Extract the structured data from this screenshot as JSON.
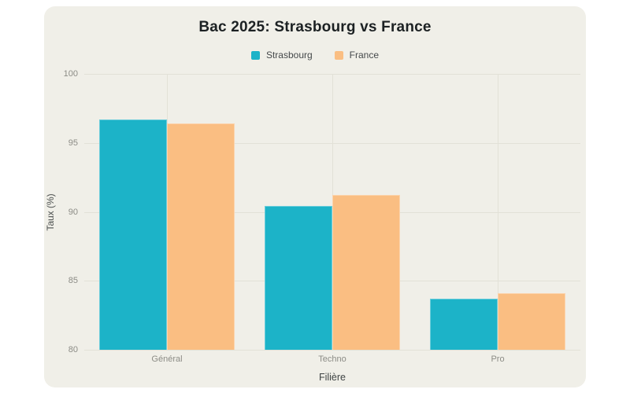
{
  "chart_data": {
    "type": "bar",
    "title": "Bac 2025: Strasbourg vs France",
    "categories": [
      "Général",
      "Techno",
      "Pro"
    ],
    "series": [
      {
        "name": "Strasbourg",
        "color": "#1cb3c8",
        "values": [
          96.7,
          90.4,
          83.7
        ]
      },
      {
        "name": "France",
        "color": "#fabe82",
        "values": [
          96.4,
          91.2,
          84.1
        ]
      }
    ],
    "xlabel": "Filière",
    "ylabel": "Taux (%)",
    "ylim": [
      80,
      100
    ],
    "yticks": [
      80,
      85,
      90,
      95,
      100
    ],
    "grid": true,
    "legend_position": "top"
  },
  "colors": {
    "page_background": "#ffffff",
    "card_background": "#f0efe8",
    "gridline": "#e2e1d7",
    "tick_text": "#8c8c86",
    "axis_title_text": "#4c504f",
    "title_text": "#1c2123",
    "legend_text": "#45494b",
    "series_strasbourg": "#1cb3c8",
    "series_france": "#fabe82"
  }
}
